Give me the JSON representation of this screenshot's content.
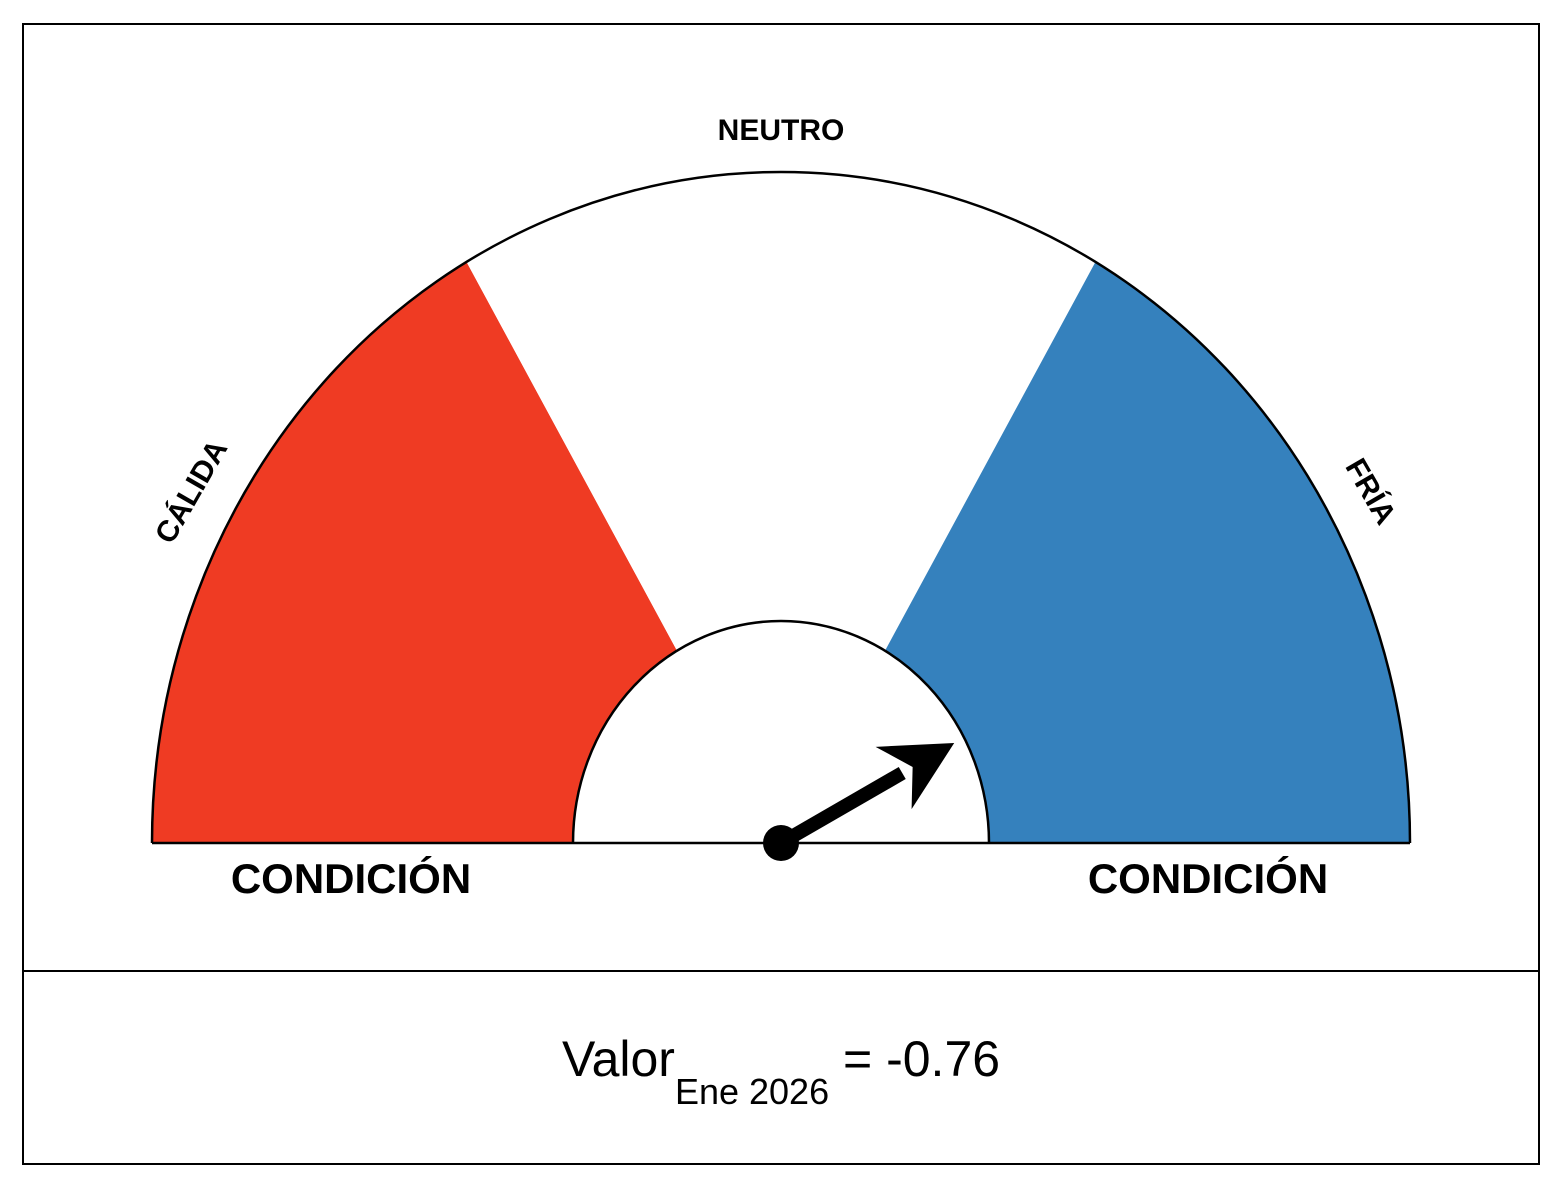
{
  "chart_data": {
    "type": "gauge",
    "labels": {
      "warm": "CÁLIDA",
      "neutral": "NEUTRO",
      "cold": "FRÍA",
      "condition_left": "CONDICIÓN",
      "condition_right": "CONDICIÓN"
    },
    "readout": {
      "prefix": "Valor",
      "subscript": "Ene 2026",
      "suffix": " = -0.76"
    },
    "value": -0.76,
    "zones": [
      {
        "name": "warm",
        "color": "#EF3B23"
      },
      {
        "name": "neutral",
        "color": "#FFFFFF"
      },
      {
        "name": "cold",
        "color": "#3581BD"
      }
    ]
  }
}
